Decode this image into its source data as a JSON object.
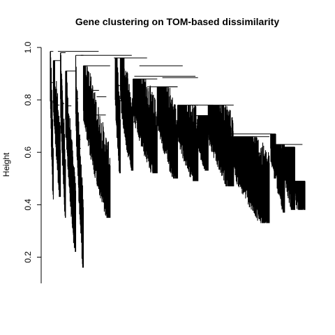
{
  "chart_data": {
    "type": "dendrogram",
    "title": "Gene clustering on TOM-based dissimilarity",
    "xlabel": "",
    "ylabel": "Height",
    "ylim": [
      0.1,
      1.0
    ],
    "yticks": [
      0.2,
      0.4,
      0.6,
      0.8,
      1.0
    ],
    "ytick_labels": [
      "0.2",
      "0.4",
      "0.6",
      "0.8",
      "1.0"
    ],
    "grid": false,
    "legend": "none",
    "line_color": "#000000",
    "top_merges": [
      {
        "height": 0.985,
        "from": 0.03,
        "to": 0.19
      },
      {
        "height": 0.97,
        "from": 0.12,
        "to": 0.32
      },
      {
        "height": 0.96,
        "from": 0.25,
        "to": 0.38
      },
      {
        "height": 0.93,
        "from": 0.35,
        "to": 0.52
      },
      {
        "height": 0.89,
        "from": 0.33,
        "to": 0.57
      },
      {
        "height": 0.885,
        "from": 0.44,
        "to": 0.58
      },
      {
        "height": 0.85,
        "from": 0.38,
        "to": 0.5
      },
      {
        "height": 0.78,
        "from": 0.55,
        "to": 0.64
      },
      {
        "height": 0.74,
        "from": 0.57,
        "to": 0.62
      },
      {
        "height": 0.67,
        "from": 0.66,
        "to": 0.87
      },
      {
        "height": 0.63,
        "from": 0.87,
        "to": 0.99
      },
      {
        "height": 0.49,
        "from": 0.93,
        "to": 0.99
      },
      {
        "height": 0.48,
        "from": 0.73,
        "to": 0.85
      }
    ],
    "clusters": [
      {
        "x0": 0.0,
        "x1": 0.012,
        "top": 0.985,
        "min": 0.42
      },
      {
        "x0": 0.012,
        "x1": 0.04,
        "top": 0.95,
        "min": 0.43
      },
      {
        "x0": 0.04,
        "x1": 0.06,
        "top": 0.98,
        "min": 0.35
      },
      {
        "x0": 0.06,
        "x1": 0.1,
        "top": 0.91,
        "min": 0.22
      },
      {
        "x0": 0.1,
        "x1": 0.13,
        "top": 0.97,
        "min": 0.16
      },
      {
        "x0": 0.13,
        "x1": 0.235,
        "top": 0.93,
        "min": 0.35
      },
      {
        "x0": 0.255,
        "x1": 0.275,
        "top": 0.96,
        "min": 0.52
      },
      {
        "x0": 0.275,
        "x1": 0.325,
        "top": 0.96,
        "min": 0.53
      },
      {
        "x0": 0.325,
        "x1": 0.42,
        "top": 0.88,
        "min": 0.52
      },
      {
        "x0": 0.42,
        "x1": 0.5,
        "top": 0.85,
        "min": 0.5
      },
      {
        "x0": 0.5,
        "x1": 0.58,
        "top": 0.78,
        "min": 0.49
      },
      {
        "x0": 0.58,
        "x1": 0.62,
        "top": 0.74,
        "min": 0.53
      },
      {
        "x0": 0.62,
        "x1": 0.72,
        "top": 0.78,
        "min": 0.47
      },
      {
        "x0": 0.72,
        "x1": 0.86,
        "top": 0.66,
        "min": 0.33
      },
      {
        "x0": 0.865,
        "x1": 0.885,
        "top": 0.67,
        "min": 0.5
      },
      {
        "x0": 0.885,
        "x1": 0.92,
        "top": 0.63,
        "min": 0.37
      },
      {
        "x0": 0.92,
        "x1": 0.96,
        "top": 0.62,
        "min": 0.38
      },
      {
        "x0": 0.96,
        "x1": 1.0,
        "top": 0.49,
        "min": 0.38
      }
    ]
  }
}
